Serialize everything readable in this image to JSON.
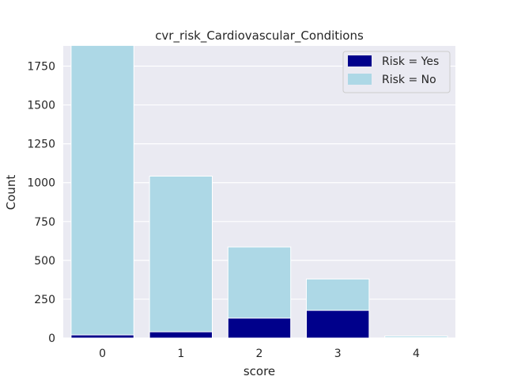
{
  "chart_data": {
    "type": "bar",
    "title": "cvr_risk_Cardiovascular_Conditions",
    "xlabel": "score",
    "ylabel": "Count",
    "categories": [
      "0",
      "1",
      "2",
      "3",
      "4"
    ],
    "series": [
      {
        "name": "Risk = Yes",
        "values": [
          20,
          40,
          128,
          178,
          3
        ],
        "color": "#00008b"
      },
      {
        "name": "Risk = No",
        "values": [
          1883,
          1042,
          586,
          380,
          13
        ],
        "color": "#add8e6"
      }
    ],
    "stacking": "overlay",
    "ylim": [
      0,
      1880
    ],
    "yticks": [
      0,
      250,
      500,
      750,
      1000,
      1250,
      1500,
      1750
    ],
    "grid": true,
    "legend_position": "top-right",
    "colors": {
      "plot_background": "#eaeaf2",
      "grid": "#ffffff"
    }
  }
}
